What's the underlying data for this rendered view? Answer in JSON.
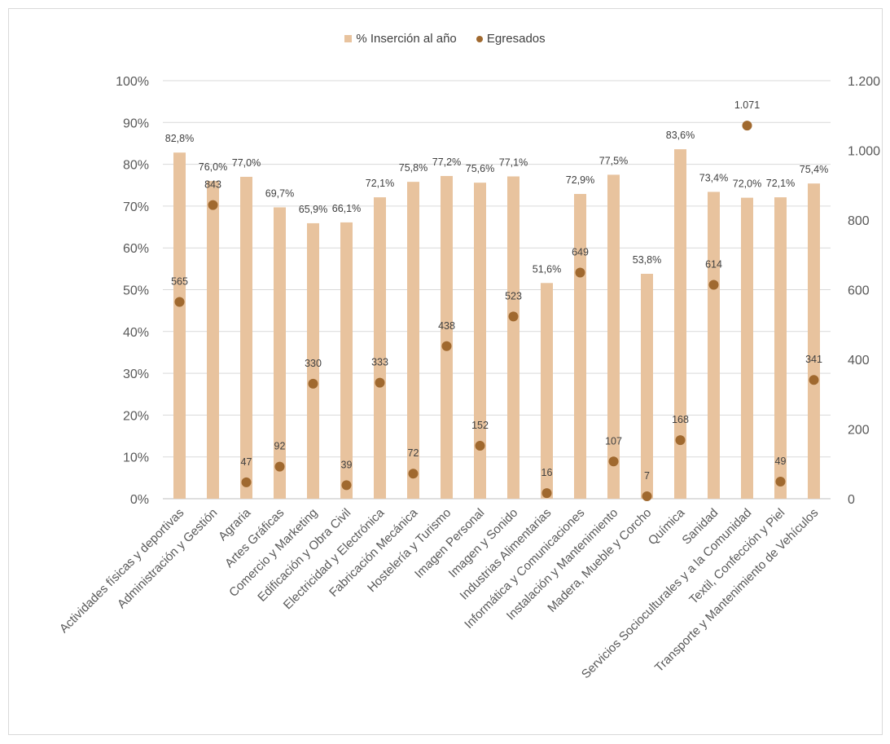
{
  "chart_data": {
    "type": "bar",
    "categories": [
      "Actividades físicas y deportivas",
      "Administración y Gestión",
      "Agraria",
      "Artes Gráficas",
      "Comercio y Marketing",
      "Edificación y Obra Civil",
      "Electricidad y Electrónica",
      "Fabricación Mecánica",
      "Hostelería y Turismo",
      "Imagen Personal",
      "Imagen y Sonido",
      "Industrias Alimentarias",
      "Informática y Comunicaciones",
      "Instalación y Mantenimiento",
      "Madera, Mueble y Corcho",
      "Química",
      "Sanidad",
      "Servicios Socioculturales y a la Comunidad",
      "Textil, Confección y Piel",
      "Transporte y Mantenimiento de Vehículos"
    ],
    "series": [
      {
        "name": "% Inserción al año",
        "type": "bar",
        "axis": "left",
        "color": "#e8c39e",
        "values": [
          82.8,
          76.0,
          77.0,
          69.7,
          65.9,
          66.1,
          72.1,
          75.8,
          77.2,
          75.6,
          77.1,
          51.6,
          72.9,
          77.5,
          53.8,
          83.6,
          73.4,
          72.0,
          72.1,
          75.4
        ],
        "labels": [
          "82,8%",
          "76,0%",
          "77,0%",
          "69,7%",
          "65,9%",
          "66,1%",
          "72,1%",
          "75,8%",
          "77,2%",
          "75,6%",
          "77,1%",
          "51,6%",
          "72,9%",
          "77,5%",
          "53,8%",
          "83,6%",
          "73,4%",
          "72,0%",
          "72,1%",
          "75,4%"
        ]
      },
      {
        "name": "Egresados",
        "type": "scatter",
        "axis": "right",
        "color": "#a0692f",
        "values": [
          565,
          843,
          47,
          92,
          330,
          39,
          333,
          72,
          438,
          152,
          523,
          16,
          649,
          107,
          7,
          168,
          614,
          1071,
          49,
          341
        ],
        "labels": [
          "565",
          "843",
          "47",
          "92",
          "330",
          "39",
          "333",
          "72",
          "438",
          "152",
          "523",
          "16",
          "649",
          "107",
          "7",
          "168",
          "614",
          "1.071",
          "49",
          "341"
        ]
      }
    ],
    "left_axis": {
      "ylim": [
        0,
        100
      ],
      "ticks": [
        0,
        10,
        20,
        30,
        40,
        50,
        60,
        70,
        80,
        90,
        100
      ],
      "tick_labels": [
        "0%",
        "10%",
        "20%",
        "30%",
        "40%",
        "50%",
        "60%",
        "70%",
        "80%",
        "90%",
        "100%"
      ]
    },
    "right_axis": {
      "ylim": [
        0,
        1200
      ],
      "ticks": [
        0,
        200,
        400,
        600,
        800,
        1000,
        1200
      ],
      "tick_labels": [
        "0",
        "200",
        "400",
        "600",
        "800",
        "1.000",
        "1.200"
      ]
    },
    "grid": true,
    "legend_position": "top-center"
  }
}
